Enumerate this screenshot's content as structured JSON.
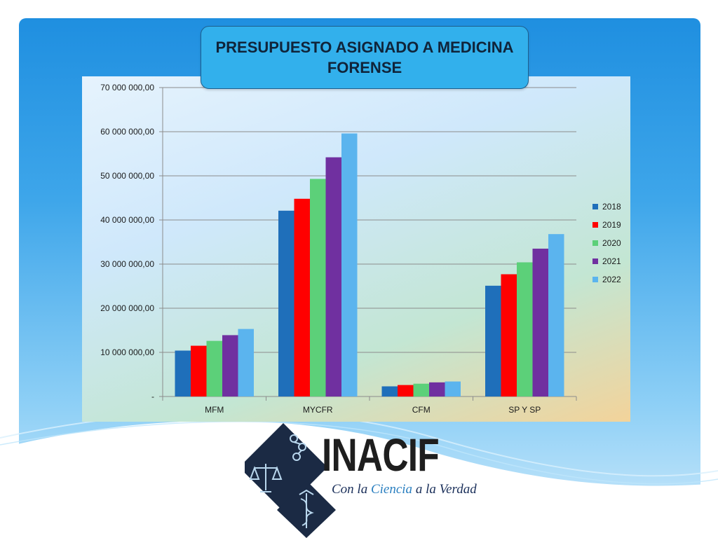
{
  "slide": {
    "title": "PRESUPUESTO ASIGNADO A MEDICINA FORENSE"
  },
  "logo": {
    "name": "INACIF",
    "tagline_part1": "Con la ",
    "tagline_part2": "Ciencia",
    "tagline_part3": " a la Verdad"
  },
  "colors": {
    "2018": "#1f6fba",
    "2019": "#ff0000",
    "2020": "#5cd079",
    "2021": "#7030a0",
    "2022": "#5bb4ee"
  },
  "chart_data": {
    "type": "bar",
    "title": "",
    "xlabel": "",
    "ylabel": "",
    "categories": [
      "MFM",
      "MYCFR",
      "CFM",
      "SP Y SP"
    ],
    "series": [
      {
        "name": "2018",
        "values": [
          10400000,
          42100000,
          2300000,
          25100000
        ]
      },
      {
        "name": "2019",
        "values": [
          11500000,
          44800000,
          2600000,
          27700000
        ]
      },
      {
        "name": "2020",
        "values": [
          12600000,
          49300000,
          2900000,
          30400000
        ]
      },
      {
        "name": "2021",
        "values": [
          13900000,
          54200000,
          3200000,
          33500000
        ]
      },
      {
        "name": "2022",
        "values": [
          15300000,
          59600000,
          3400000,
          36800000
        ]
      }
    ],
    "ylim": [
      0,
      70000000
    ],
    "yticks": [
      {
        "value": 0,
        "label": "-"
      },
      {
        "value": 10000000,
        "label": "10 000 000,00"
      },
      {
        "value": 20000000,
        "label": "20 000 000,00"
      },
      {
        "value": 30000000,
        "label": "30 000 000,00"
      },
      {
        "value": 40000000,
        "label": "40 000 000,00"
      },
      {
        "value": 50000000,
        "label": "50 000 000,00"
      },
      {
        "value": 60000000,
        "label": "60 000 000,00"
      },
      {
        "value": 70000000,
        "label": "70 000 000,00"
      }
    ],
    "grid": true,
    "legend_position": "right"
  }
}
